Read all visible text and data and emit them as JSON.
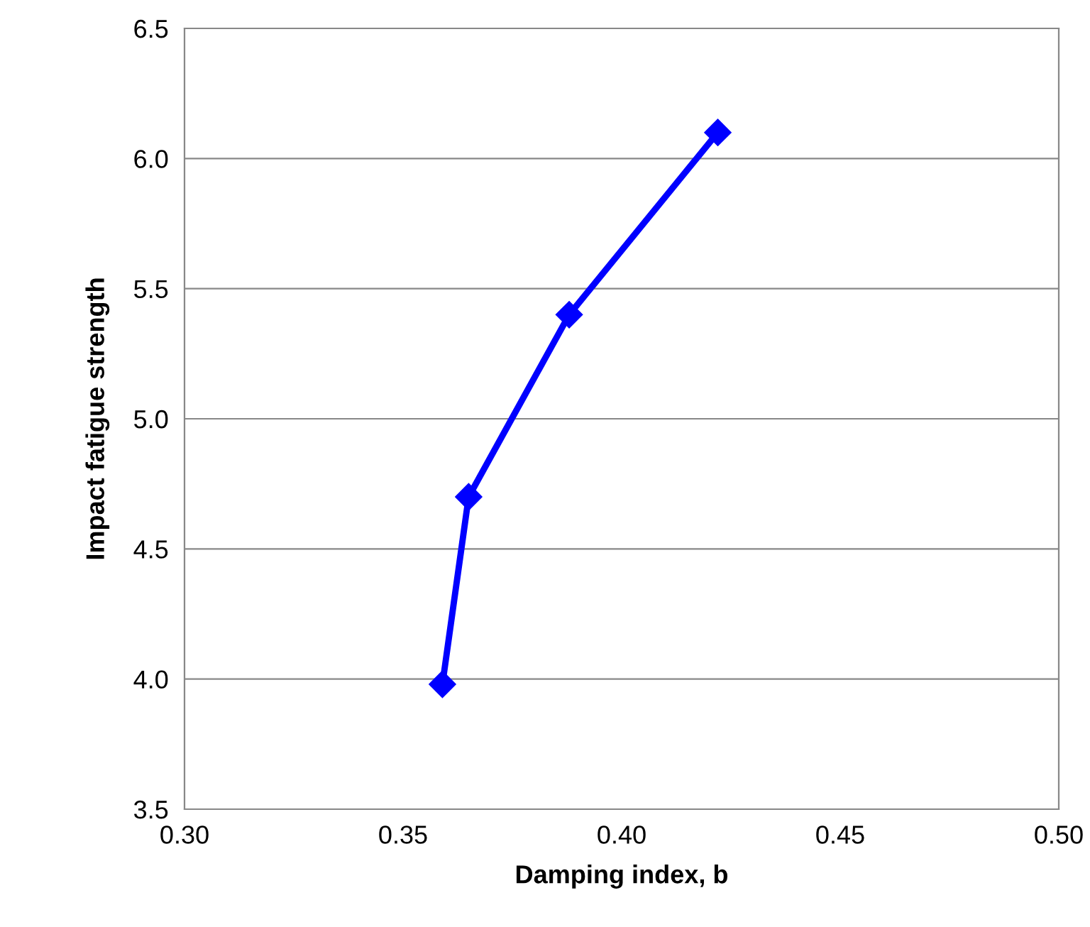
{
  "chart_data": {
    "type": "line",
    "xlabel": "Damping index, b",
    "ylabel": "Impact fatigue strength",
    "series": [
      {
        "color": "#0000ff",
        "x": [
          0.359,
          0.365,
          0.388,
          0.422
        ],
        "values": [
          3.98,
          4.7,
          5.4,
          6.1
        ]
      }
    ],
    "xlim": [
      0.3,
      0.5
    ],
    "xticks": [
      {
        "value": 0.3,
        "label": "0.30"
      },
      {
        "value": 0.35,
        "label": "0.35"
      },
      {
        "value": 0.4,
        "label": "0.40"
      },
      {
        "value": 0.45,
        "label": "0.45"
      },
      {
        "value": 0.5,
        "label": "0.50"
      }
    ],
    "ylim": [
      3.5,
      6.5
    ],
    "yticks": [
      3.5,
      {
        "value": 4.0,
        "label": "4.0"
      },
      4.5,
      {
        "value": 5.0,
        "label": "5.0"
      },
      5.5,
      {
        "value": 6.0,
        "label": "6.0"
      },
      6.5
    ],
    "grid": "y",
    "marker": "diamond",
    "line_style": "solid",
    "legend": false
  }
}
